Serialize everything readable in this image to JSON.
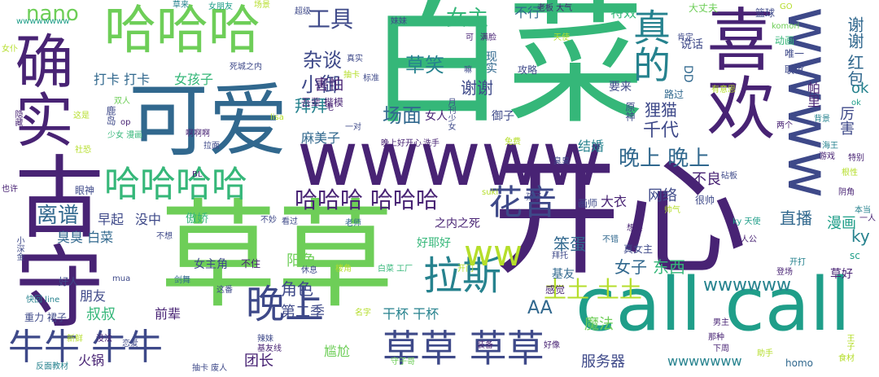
{
  "palette": {
    "dark_purple": "#482374",
    "indigo": "#3e4989",
    "blue": "#31688e",
    "teal": "#26828e",
    "green_teal": "#1f9e89",
    "green": "#35b779",
    "lime": "#6ece58",
    "yellow_green": "#b5de2b"
  },
  "words": {
    "w000": "白菜",
    "w001": "开心",
    "w002": "草草",
    "w003": "wwwww",
    "w004": "call call",
    "w005": "可爱",
    "w006": "古守",
    "w007": "确实",
    "w008": "喜欢",
    "w009": "wwww",
    "w010": "哈哈哈",
    "w011": "哈哈哈哈",
    "w012": "草草 草草",
    "w013": "牛牛 牛牛",
    "w014": "晚上",
    "w015": "拉斯",
    "w016": "真的",
    "w017": "花音",
    "w018": "哈哈哈 哈哈哈",
    "w019": "nano",
    "w020": "工具",
    "w021": "女主",
    "w022": "杂谈",
    "w023": "草笑",
    "w024": "小御",
    "w025": "场面",
    "w026": "女人",
    "w027": "拜拜",
    "w028": "晚上 晚上",
    "w029": "离谱",
    "w030": "ww",
    "w031": "土土 土土",
    "w032": "AA",
    "w033": "角色",
    "w034": "第二季",
    "w035": "阳角",
    "w036": "女子",
    "w037": "东西",
    "w038": "笨蛋",
    "w039": "wwwwww",
    "w040": "直播",
    "w041": "漫画",
    "w042": "ky",
    "w043": "谢谢 红包",
    "w044": "厉害",
    "w045": "帕里",
    "w046": "ok",
    "w047": "狸猫",
    "w048": "千代",
    "w049": "谢谢",
    "w050": "害怕",
    "w051": "麻美子",
    "w052": "结婚",
    "w053": "网络",
    "w054": "魔法",
    "w055": "服务器",
    "w056": "团长",
    "w057": "叔叔",
    "w058": "朋友",
    "w059": "前辈",
    "w060": "干杯 干杯",
    "w061": "尴尬",
    "w062": "火锅",
    "w063": "打卡 打卡",
    "w064": "女孩子",
    "w065": "早起",
    "w066": "没中",
    "w067": "臭臭 白菜",
    "w068": "不良",
    "w069": "特效",
    "w070": "不行",
    "w071": "篮球",
    "w072": "大丈夫",
    "w073": "wwwwwww",
    "w074": "大衣",
    "w075": "画师",
    "w076": "好耶好",
    "w077": "女主角",
    "w078": "不住",
    "w079": "基友",
    "w080": "攻略",
    "w081": "御子",
    "w082": "现实",
    "w083": "说话",
    "w084": "联谊",
    "w085": "DD",
    "w086": "草好",
    "w087": "sc",
    "w088": "傲娇",
    "w089": "wwwwwwww",
    "w090": "homo",
    "w091": "守子哥",
    "w092": "重力 裙子",
    "w093": "好人",
    "w094": "快回 line",
    "w095": "反面教材",
    "w096": "抽卡 废人",
    "w097": "真女主",
    "w098": "ky 天使",
    "w099": "主人公",
    "w100": "晚上好开心",
    "w101": "白菜 工厂",
    "w102": "一对",
    "w103": "吾辈 楷模",
    "w104": "感觉",
    "w105": "之内之死",
    "w106": "要来",
    "w107": "唯一",
    "w108": "动画",
    "w109": "路过",
    "w110": "妹妹",
    "w111": "满脸",
    "w112": "老板 大气",
    "w113": "女朋友",
    "w114": "场景",
    "w115": "超级",
    "w116": "草来",
    "w117": "不错",
    "w118": "很帅",
    "w119": "两个",
    "w120": "阴角",
    "w121": "少女 漫画",
    "w122": "眼神",
    "w123": "也许",
    "w124": "隐藏",
    "w125": "这是",
    "w126": "老师",
    "w127": "看过",
    "w128": "这番",
    "w129": "恋爱",
    "w130": "男主",
    "w131": "拜托",
    "w132": "女仆",
    "w133": "双人",
    "w134": "死城之内",
    "w135": "拉面",
    "w136": "嘛",
    "w137": "鹿岛",
    "w138": "op",
    "w139": "原神",
    "w140": "GO",
    "w141": "komori",
    "w142": "肯定",
    "w143": "天使",
    "w144": "有意思",
    "w145": "背景",
    "w146": "海王",
    "w147": "游戏",
    "w148": "特别",
    "w149": "根性",
    "w150": "本当",
    "w151": "一人",
    "w152": "王子",
    "w153": "食材",
    "w154": "下周",
    "w155": "那种",
    "w156": "登场",
    "w157": "助手",
    "w158": "砧板",
    "w159": "帅气",
    "w160": "名字",
    "w161": "新鲜",
    "w162": "辣妹",
    "w163": "基友线",
    "w164": "没法",
    "w165": "装备",
    "w166": "抽卡",
    "w167": "真实",
    "w168": "标准",
    "w169": "洗手",
    "w170": "毛",
    "w171": "BL",
    "w172": "社恐",
    "w173": "啊啊啊",
    "w174": "lisa",
    "w175": "月刊少女",
    "w176": "臭臭",
    "w177": "免费",
    "w178": "孩子",
    "w179": "suki",
    "w180": "休息",
    "w181": "楼角",
    "w182": "mua",
    "w183": "剑舞",
    "w184": "开门",
    "w185": "不想",
    "w186": "不妙",
    "w187": "小深金",
    "w188": "开打",
    "w189": "想要",
    "w190": "好像",
    "w191": "可",
    "w192": "ok"
  }
}
